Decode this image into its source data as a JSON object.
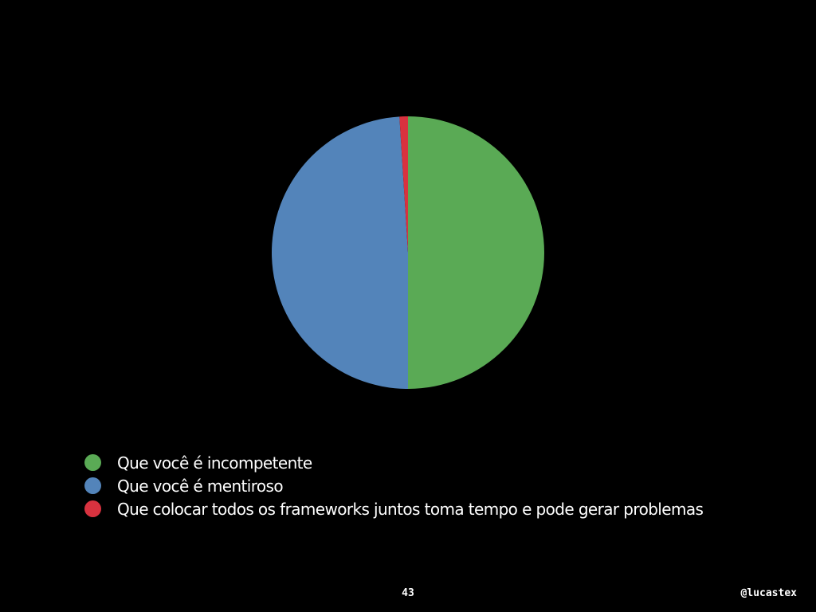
{
  "chart_data": {
    "type": "pie",
    "title": "",
    "series": [
      {
        "labels": [
          "Que você é incompetente",
          "Que você é mentiroso",
          "Que colocar todos os frameworks juntos toma tempo e pode gerar problemas"
        ],
        "values": [
          50,
          49,
          1
        ],
        "colors": [
          "#5aaa55",
          "#5384ba",
          "#d8323f"
        ]
      }
    ],
    "legend": "bottom-left"
  },
  "footer": {
    "page_number": "43",
    "handle": "@lucastex"
  }
}
